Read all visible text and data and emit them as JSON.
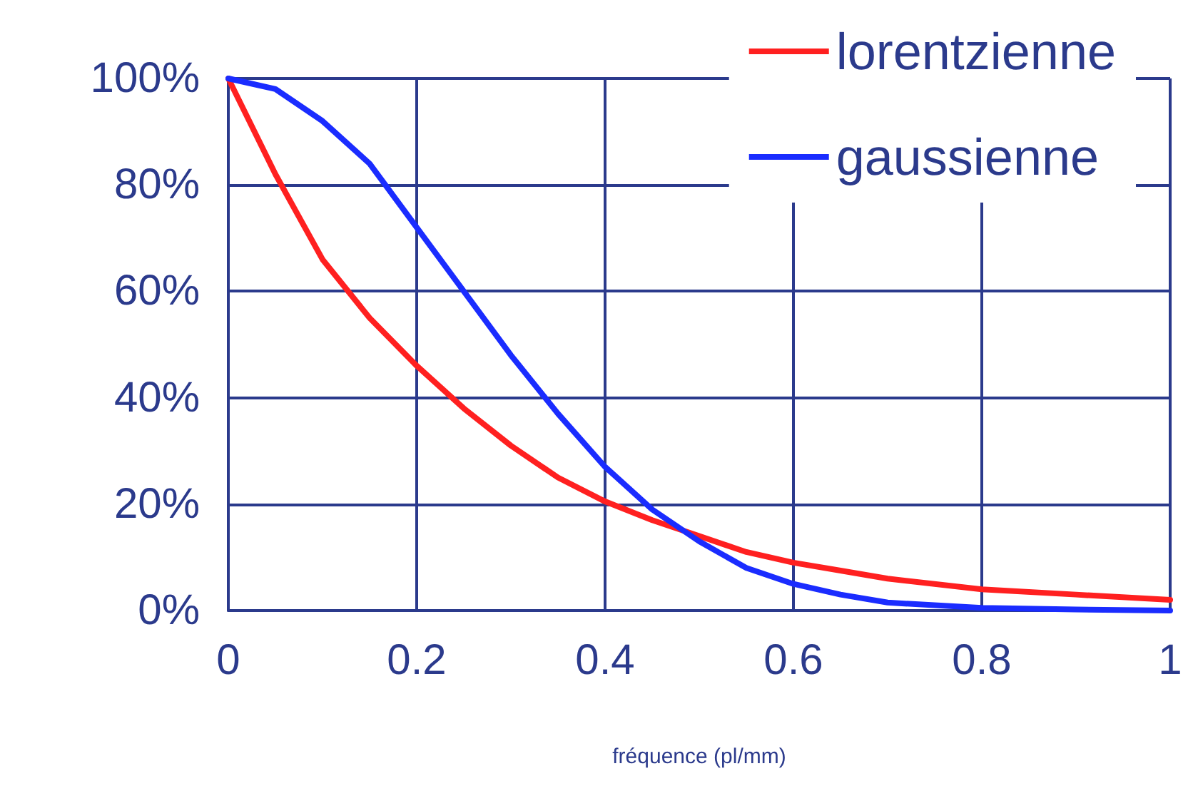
{
  "chart_data": {
    "type": "line",
    "xlabel": "fréquence (pl/mm)",
    "x": [
      0,
      0.05,
      0.1,
      0.15,
      0.2,
      0.25,
      0.3,
      0.35,
      0.4,
      0.45,
      0.5,
      0.55,
      0.6,
      0.65,
      0.7,
      0.8,
      0.9,
      1
    ],
    "series": [
      {
        "name": "lorentzienne",
        "color": "#ff2020",
        "values": [
          100,
          82,
          66,
          55,
          46,
          38,
          31,
          25,
          20.5,
          17,
          14,
          11,
          9,
          7.5,
          6,
          4,
          3,
          2
        ]
      },
      {
        "name": "gaussienne",
        "color": "#1a2cff",
        "values": [
          100,
          98,
          92,
          84,
          72,
          60,
          48,
          37,
          27,
          19,
          13,
          8,
          5,
          3,
          1.5,
          0.5,
          0.2,
          0
        ]
      }
    ],
    "xlim": [
      0,
      1
    ],
    "xticks": [
      0,
      0.2,
      0.4,
      0.6,
      0.8,
      1
    ],
    "ylim": [
      0,
      100
    ],
    "yticks": [
      {
        "value": 0,
        "label": "0%"
      },
      {
        "value": 20,
        "label": "20%"
      },
      {
        "value": 40,
        "label": "40%"
      },
      {
        "value": 60,
        "label": "60%"
      },
      {
        "value": 80,
        "label": "80%"
      },
      {
        "value": 100,
        "label": "100%"
      }
    ],
    "grid": true,
    "legend": "top right",
    "marker": "none",
    "line_style": "solid"
  }
}
